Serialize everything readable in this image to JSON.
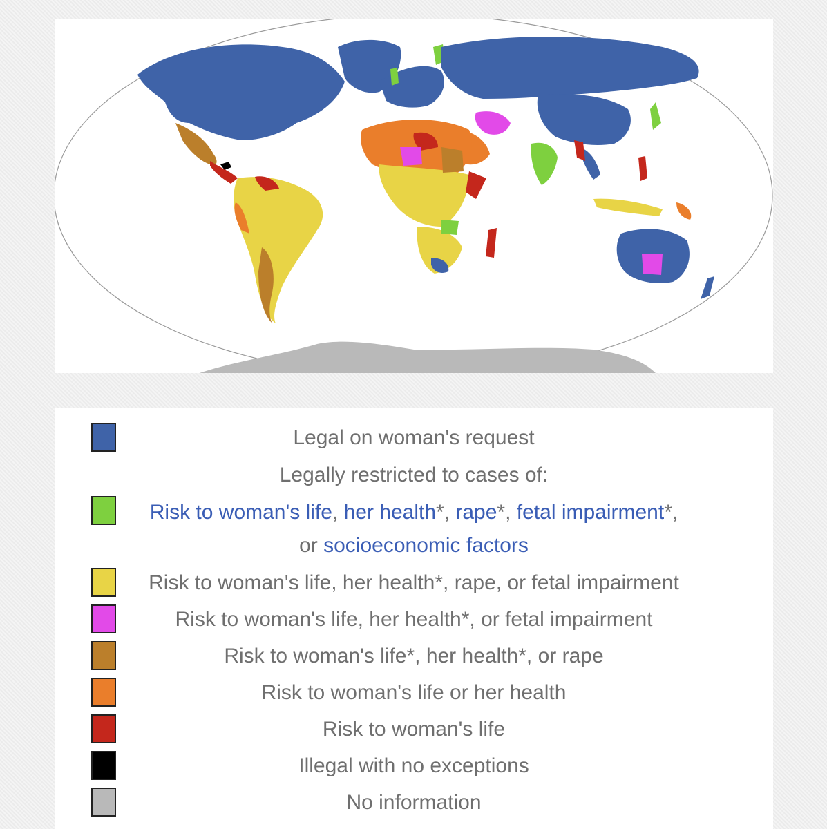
{
  "legend": {
    "items": [
      {
        "key": "request",
        "color": "#3f63a8",
        "label": "Legal on woman's request"
      },
      {
        "key": "header",
        "label": "Legally restricted to cases of:"
      },
      {
        "key": "socio",
        "color": "#7ed03f",
        "parts": [
          "Risk to woman's life",
          ", ",
          "her health",
          "*, ",
          "rape",
          "*, ",
          "fetal impairment",
          "*,"
        ],
        "line2_prefix": "or ",
        "line2_link": "socioeconomic factors"
      },
      {
        "key": "rape",
        "color": "#e8d446",
        "label": "Risk to woman's life, her health*, rape, or fetal impairment"
      },
      {
        "key": "fetal",
        "color": "#e24ae8",
        "label": "Risk to woman's life, her health*, or fetal impairment"
      },
      {
        "key": "liferape",
        "color": "#bb7f2b",
        "label": "Risk to woman's life*, her health*, or rape"
      },
      {
        "key": "health",
        "color": "#ea7e2b",
        "label": "Risk to woman's life or her health"
      },
      {
        "key": "life",
        "color": "#c4271c",
        "label": "Risk to woman's life"
      },
      {
        "key": "illegal",
        "color": "#000000",
        "label": "Illegal with no exceptions"
      },
      {
        "key": "noinfo",
        "color": "#b9b9b9",
        "label": "No information"
      }
    ]
  },
  "map": {
    "ocean": "#ffffff",
    "outline": "#9a9a9a"
  }
}
